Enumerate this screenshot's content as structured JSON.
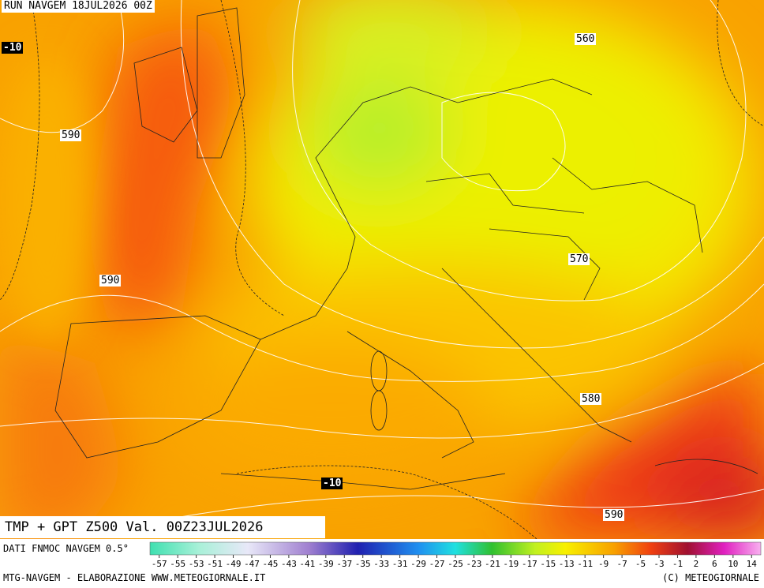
{
  "header": {
    "run": "RUN NAVGEM 18JUL2026 00Z"
  },
  "map": {
    "temperature_labels": [
      "-10",
      "-10"
    ],
    "contour_labels": [
      "560",
      "590",
      "590",
      "570",
      "580",
      "590"
    ]
  },
  "caption": "TMP + GPT Z500 Val. 00Z23JUL2026",
  "colorbar": {
    "source": "DATI FNMOC NAVGEM 0.5°",
    "ticks": [
      -57,
      -55,
      -53,
      -51,
      -49,
      -47,
      -45,
      -43,
      -41,
      -39,
      -37,
      -35,
      -33,
      -31,
      -29,
      -27,
      -25,
      -23,
      -21,
      -19,
      -17,
      -15,
      -13,
      -11,
      -9,
      -7,
      -5,
      -3,
      -1,
      2,
      6,
      10,
      14
    ]
  },
  "footer": {
    "left": "MTG-NAVGEM - ELABORAZIONE WWW.METEOGIORNALE.IT",
    "right": "(C) METEOGIORNALE"
  }
}
